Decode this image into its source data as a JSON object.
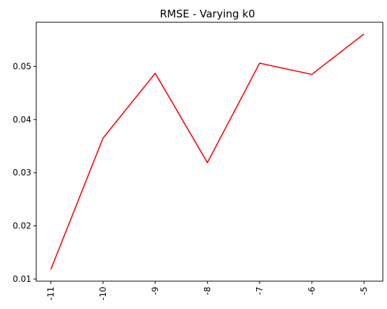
{
  "chart_data": {
    "type": "line",
    "title": "RMSE - Varying k0",
    "xlabel": "",
    "ylabel": "",
    "categories": [
      "-11",
      "-10",
      "-9",
      "-8",
      "-7",
      "-6",
      "-5"
    ],
    "series": [
      {
        "values": [
          0.0118,
          0.0365,
          0.0487,
          0.0319,
          0.0506,
          0.0485,
          0.0561
        ],
        "color": "#ff0000"
      }
    ],
    "yticks": [
      0.01,
      0.02,
      0.03,
      0.04,
      0.05
    ],
    "ytick_labels": [
      "0.01",
      "0.02",
      "0.03",
      "0.04",
      "0.05"
    ],
    "ylim": [
      0.0096,
      0.0583
    ],
    "grid": false,
    "xtick_rotation": 90
  }
}
